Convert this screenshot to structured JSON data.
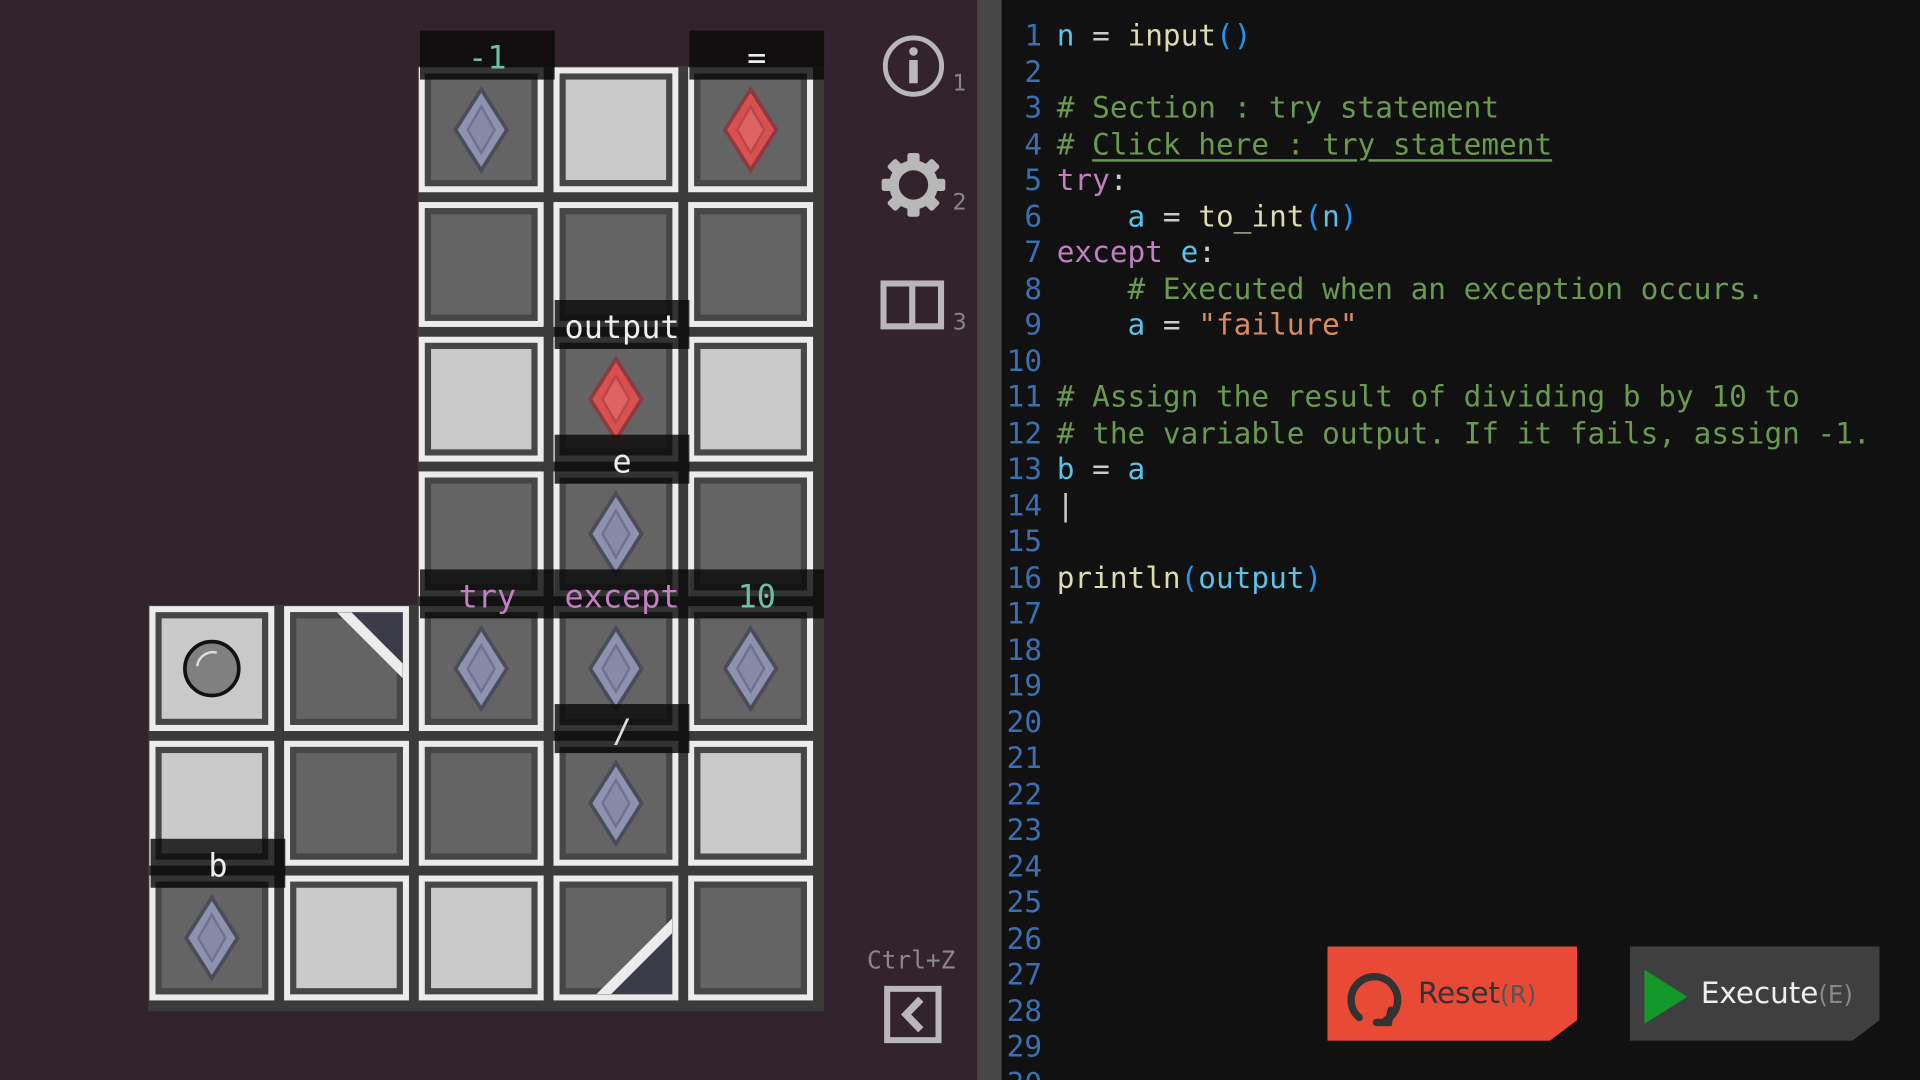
{
  "colors": {
    "background": "#33232c",
    "editor_bg": "#111111",
    "reset": "#e84a35",
    "execute": "#3f3f3f",
    "play": "#13992a",
    "blue_gem": "#8e92ae",
    "red_gem": "#d9504f"
  },
  "board": {
    "cells": [
      [
        null,
        null,
        "dark-gem-blue",
        "light",
        "dark-gem-red"
      ],
      [
        null,
        null,
        "dark",
        "dark",
        "dark"
      ],
      [
        null,
        null,
        "light",
        "dark-gem-red",
        "light"
      ],
      [
        null,
        null,
        "dark",
        "dark-gem-blue",
        "dark"
      ],
      [
        "light-ball",
        "dark-slope-tr",
        "dark-gem-blue",
        "dark-gem-blue",
        "dark-gem-blue"
      ],
      [
        "light",
        "dark",
        "dark",
        "dark-gem-blue",
        "light"
      ],
      [
        "dark-gem-blue",
        "light",
        "light",
        "dark-slope-br",
        "dark"
      ]
    ],
    "labels": [
      {
        "text": "-1",
        "row": 0,
        "col": 2,
        "color": "#6cc0a0"
      },
      {
        "text": "=",
        "row": 0,
        "col": 4,
        "color": "#eeeeee"
      },
      {
        "text": "output",
        "row": 2,
        "col": 3,
        "color": "#eeeeee"
      },
      {
        "text": "e",
        "row": 3,
        "col": 3,
        "color": "#eeeeee"
      },
      {
        "text": "try",
        "row": 4,
        "col": 2,
        "color": "#c27fc4"
      },
      {
        "text": "except",
        "row": 4,
        "col": 3,
        "color": "#c27fc4"
      },
      {
        "text": "10",
        "row": 4,
        "col": 4,
        "color": "#6cc0a0"
      },
      {
        "text": "/",
        "row": 5,
        "col": 3,
        "color": "#dddddd"
      },
      {
        "text": "b",
        "row": 6,
        "col": 0,
        "color": "#eeeeee"
      }
    ]
  },
  "sidebar": {
    "items": [
      {
        "icon": "info-icon",
        "shortcut": "1"
      },
      {
        "icon": "gear-icon",
        "shortcut": "2"
      },
      {
        "icon": "book-icon",
        "shortcut": "3"
      }
    ],
    "undo": {
      "shortcut": "Ctrl+Z",
      "icon": "back-arrow-icon"
    }
  },
  "editor": {
    "lines": [
      [
        [
          "var",
          "n"
        ],
        [
          "op",
          " = "
        ],
        [
          "fn",
          "input"
        ],
        [
          "par",
          "()"
        ]
      ],
      [],
      [
        [
          "cm",
          "# Section : try statement"
        ]
      ],
      [
        [
          "cm",
          "# "
        ],
        [
          "link",
          "Click here : try statement"
        ]
      ],
      [
        [
          "kw",
          "try"
        ],
        [
          "op",
          ":"
        ]
      ],
      [
        [
          "op",
          "    "
        ],
        [
          "var",
          "a"
        ],
        [
          "op",
          " = "
        ],
        [
          "fn",
          "to_int"
        ],
        [
          "par",
          "("
        ],
        [
          "var",
          "n"
        ],
        [
          "par",
          ")"
        ]
      ],
      [
        [
          "kw",
          "except"
        ],
        [
          "op",
          " "
        ],
        [
          "var",
          "e"
        ],
        [
          "op",
          ":"
        ]
      ],
      [
        [
          "op",
          "    "
        ],
        [
          "cm",
          "# Executed when an exception occurs."
        ]
      ],
      [
        [
          "op",
          "    "
        ],
        [
          "var",
          "a"
        ],
        [
          "op",
          " = "
        ],
        [
          "str",
          "\"failure\""
        ]
      ],
      [],
      [
        [
          "cm",
          "# Assign the result of dividing b by 10 to"
        ]
      ],
      [
        [
          "cm",
          "# the variable output. If it fails, assign -1."
        ]
      ],
      [
        [
          "var",
          "b"
        ],
        [
          "op",
          " = "
        ],
        [
          "var",
          "a"
        ]
      ],
      [
        [
          "op",
          "|"
        ]
      ],
      [],
      [
        [
          "fn",
          "println"
        ],
        [
          "par",
          "("
        ],
        [
          "var",
          "output"
        ],
        [
          "par",
          ")"
        ]
      ],
      [],
      [],
      [],
      [],
      [],
      [],
      [],
      [],
      [],
      [],
      [],
      [],
      [],
      []
    ]
  },
  "buttons": {
    "reset": {
      "label": "Reset",
      "key": "(R)",
      "icon": "reset-icon"
    },
    "execute": {
      "label": "Execute",
      "key": "(E)",
      "icon": "play-icon"
    }
  }
}
